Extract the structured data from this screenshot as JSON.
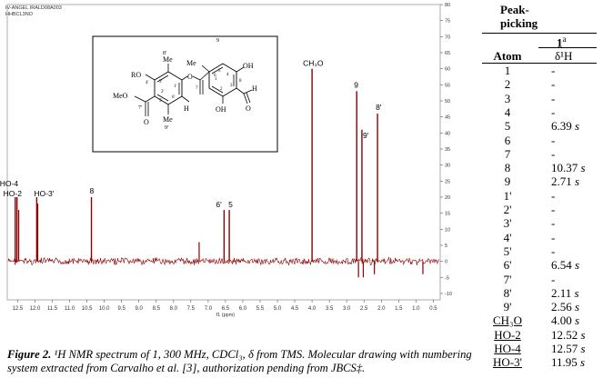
{
  "spectrum": {
    "header_lines": [
      "IV-ANGEL IRALD08A003",
      "HHBCL3NO"
    ],
    "x_axis": {
      "ticks": [
        "12.5",
        "12.0",
        "11.5",
        "11.0",
        "10.5",
        "10.0",
        "9.5",
        "9.0",
        "8.5",
        "8.0",
        "7.5",
        "7.0",
        "6.5",
        "6.0",
        "5.5",
        "5.0",
        "4.5",
        "4.0",
        "3.5",
        "3.0",
        "2.5",
        "2.0",
        "1.5",
        "1.0",
        "0.5"
      ],
      "label": "f1 (ppm)"
    },
    "y_axis": {
      "ticks": [
        "80",
        "75",
        "70",
        "65",
        "60",
        "55",
        "50",
        "45",
        "40",
        "35",
        "30",
        "25",
        "20",
        "15",
        "10",
        "5",
        "0",
        "-5",
        "-10"
      ]
    },
    "peak_labels": [
      {
        "text": "HO-4",
        "ppm": 12.57,
        "height": 20
      },
      {
        "text": "HO-2",
        "ppm": 12.52,
        "height": 20
      },
      {
        "text": "HO-3'",
        "ppm": 11.95,
        "height": 20
      },
      {
        "text": "8",
        "ppm": 10.37,
        "height": 20
      },
      {
        "text": "6'",
        "ppm": 6.54,
        "height": 16
      },
      {
        "text": "5",
        "ppm": 6.39,
        "height": 16
      },
      {
        "text": "CH₃O",
        "ppm": 4.0,
        "height": 60
      },
      {
        "text": "9",
        "ppm": 2.71,
        "height": 53
      },
      {
        "text": "9'",
        "ppm": 2.56,
        "height": 41
      },
      {
        "text": "8'",
        "ppm": 2.11,
        "height": 46
      }
    ],
    "molecule_labels": {
      "me_top_left": "Me",
      "me_top_left_num": "8'",
      "ro": "RO",
      "ome": "MeO",
      "c7p": "7'",
      "o_ester": "O",
      "h_left": "H",
      "me_bottom": "Me",
      "me_bottom_num": "9'",
      "me_top_right": "Me",
      "me_top_right_num": "9",
      "oh_right": "OH",
      "oh_bottom": "OH",
      "h_aldehyde": "H",
      "o_aldehyde": "O",
      "o_carbonyl": "O",
      "c_nums": [
        "4'",
        "3'",
        "2'",
        "1'",
        "6'",
        "5'",
        "7",
        "1",
        "2",
        "3",
        "4",
        "5",
        "6",
        "8"
      ]
    }
  },
  "caption": {
    "lead": "Figure 2.",
    "text": " ¹H NMR spectrum of 1, 300 MHz, CDCl₃, δ from TMS. Molecular drawing with numbering system extracted from Carvalho et al. [3], authorization pending from JBCS‡."
  },
  "table": {
    "title": "Peak-picking",
    "compound": "1",
    "compound_sup": "a",
    "col_atom": "Atom",
    "col_shift": "δ¹H",
    "rows": [
      {
        "atom": "1",
        "shift": "-",
        "mult": ""
      },
      {
        "atom": "2",
        "shift": "-",
        "mult": ""
      },
      {
        "atom": "3",
        "shift": "-",
        "mult": ""
      },
      {
        "atom": "4",
        "shift": "-",
        "mult": ""
      },
      {
        "atom": "5",
        "shift": "6.39",
        "mult": "s"
      },
      {
        "atom": "6",
        "shift": "-",
        "mult": ""
      },
      {
        "atom": "7",
        "shift": "-",
        "mult": ""
      },
      {
        "atom": "8",
        "shift": "10.37",
        "mult": "s"
      },
      {
        "atom": "9",
        "shift": "2.71",
        "mult": "s"
      },
      {
        "atom": "1'",
        "shift": "-",
        "mult": ""
      },
      {
        "atom": "2'",
        "shift": "-",
        "mult": ""
      },
      {
        "atom": "3'",
        "shift": "-",
        "mult": ""
      },
      {
        "atom": "4'",
        "shift": "-",
        "mult": ""
      },
      {
        "atom": "5'",
        "shift": "-",
        "mult": ""
      },
      {
        "atom": "6'",
        "shift": "6.54",
        "mult": "s"
      },
      {
        "atom": "7'",
        "shift": "-",
        "mult": ""
      },
      {
        "atom": "8'",
        "shift": "2.11",
        "mult": "s"
      },
      {
        "atom": "9'",
        "shift": "2.56",
        "mult": "s"
      },
      {
        "atom": "CH₃O",
        "shift": "4.00",
        "mult": "s"
      },
      {
        "atom": "HO-2",
        "shift": "12.52",
        "mult": "s"
      },
      {
        "atom": "HO-4",
        "shift": "12.57",
        "mult": "s"
      },
      {
        "atom": "HO-3'",
        "shift": "11.95",
        "mult": "s"
      }
    ]
  }
}
